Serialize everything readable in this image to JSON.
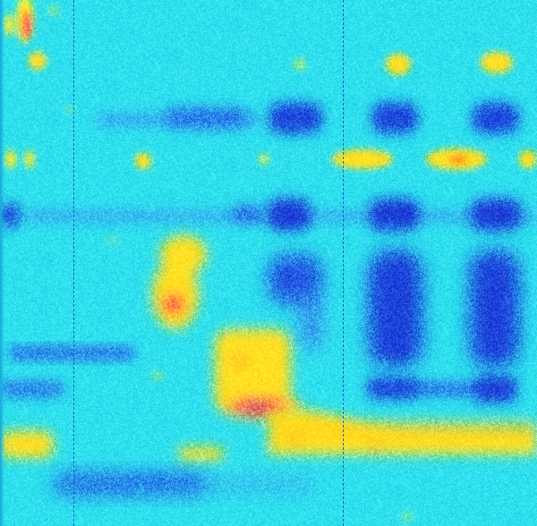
{
  "image": {
    "kind": "false-color-heatmap",
    "colormap": [
      "#2fe0ee",
      "#2a7ff0",
      "#1e3fd8",
      "#ffee22",
      "#ffd21a",
      "#ff2255",
      "#cc0066"
    ],
    "background_color": "#2fe0ee",
    "divider_lines": 2,
    "divider_style": "dashed",
    "divider_color": "#1450c8"
  }
}
